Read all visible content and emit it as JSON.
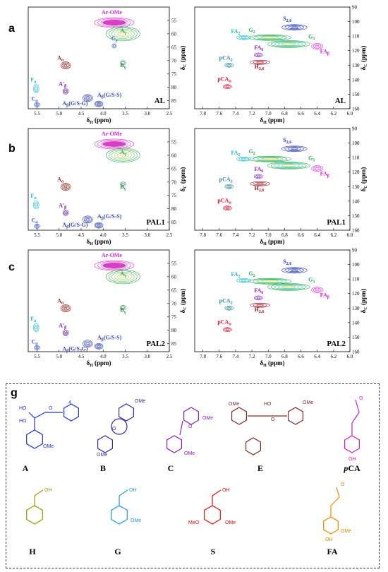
{
  "panels": [
    {
      "id": "a",
      "sample": "AL",
      "region": "side"
    },
    {
      "id": "b",
      "sample": "PAL1",
      "region": "side"
    },
    {
      "id": "c",
      "sample": "PAL2",
      "region": "side"
    },
    {
      "id": "d",
      "sample": "AL",
      "region": "aromatic"
    },
    {
      "id": "e",
      "sample": "PAL1",
      "region": "aromatic"
    },
    {
      "id": "f",
      "sample": "PAL2",
      "region": "aromatic"
    }
  ],
  "axes": {
    "side": {
      "x_label": "δH (ppm)",
      "y_label": "δC (ppm)",
      "x_ticks": [
        "5.5",
        "5.0",
        "4.5",
        "4.0",
        "3.5",
        "3.0",
        "2.5"
      ],
      "y_ticks": [
        "55",
        "60",
        "65",
        "70",
        "75",
        "80",
        "85"
      ]
    },
    "aromatic": {
      "x_label": "δH (ppm)",
      "y_label": "δC (ppm)",
      "x_ticks": [
        "7.8",
        "7.6",
        "7.4",
        "7.2",
        "7.0",
        "6.8",
        "6.6",
        "6.4",
        "6.2",
        "6.0"
      ],
      "y_ticks": [
        "90",
        "100",
        "110",
        "120",
        "130",
        "140",
        "150",
        "160"
      ]
    }
  },
  "cross_peak_labels": {
    "side": [
      "Ar-OMe",
      "Aγ",
      "Cγ",
      "Bγ",
      "Aα",
      "A'β",
      "Fα",
      "Cα",
      "Aβ(G/S-G)",
      "Aβ(G/S-S)"
    ],
    "aromatic": [
      "S2,6",
      "FA2",
      "G2",
      "G5",
      "FA6",
      "pCA2",
      "H2,6",
      "FAβ",
      "pCAα"
    ]
  },
  "colors": {
    "Ar-OMe": "#cc22cc",
    "A": "#22aa44",
    "B": "#228844",
    "C": "#3355cc",
    "A_alpha": "#8b1a1a",
    "A_beta_prime": "#6a1a9a",
    "A_beta": "#3344aa",
    "F": "#22bbcc",
    "S": "#2233aa",
    "G": "#22aa55",
    "FA": "#22bbcc",
    "FA6": "#8822bb",
    "FA_beta": "#dd22dd",
    "pCA2": "#3388aa",
    "H": "#991122",
    "pCA_alpha": "#dd1133"
  },
  "chart_data": [
    {
      "panel": "a",
      "type": "scatter",
      "xlabel": "δH (ppm)",
      "ylabel": "δC (ppm)",
      "xlim": [
        5.7,
        2.5
      ],
      "ylim": [
        88,
        50
      ],
      "series": [
        {
          "name": "Ar-OMe",
          "x": [
            3.75
          ],
          "y": [
            55.8
          ]
        },
        {
          "name": "Aγ",
          "x": [
            3.55
          ],
          "y": [
            60.0
          ]
        },
        {
          "name": "Cγ",
          "x": [
            3.75
          ],
          "y": [
            64.5
          ]
        },
        {
          "name": "Bγ",
          "x": [
            3.55
          ],
          "y": [
            70.8
          ]
        },
        {
          "name": "Aα",
          "x": [
            4.85
          ],
          "y": [
            71.8
          ]
        },
        {
          "name": "A'β",
          "x": [
            4.85
          ],
          "y": [
            81.5
          ]
        },
        {
          "name": "Fα",
          "x": [
            5.52
          ],
          "y": [
            80.5
          ]
        },
        {
          "name": "Cα",
          "x": [
            5.5
          ],
          "y": [
            86.5
          ]
        },
        {
          "name": "Aβ(G/S-G)",
          "x": [
            4.35
          ],
          "y": [
            84.0
          ]
        },
        {
          "name": "Aβ(G/S-S)",
          "x": [
            4.1
          ],
          "y": [
            86.2
          ]
        }
      ]
    },
    {
      "panel": "b",
      "type": "scatter",
      "xlabel": "δH (ppm)",
      "ylabel": "δC (ppm)",
      "xlim": [
        5.7,
        2.5
      ],
      "ylim": [
        88,
        50
      ],
      "series": [
        {
          "name": "Ar-OMe",
          "x": [
            3.75
          ],
          "y": [
            55.8
          ]
        },
        {
          "name": "Aγ",
          "x": [
            3.55
          ],
          "y": [
            60.0
          ]
        },
        {
          "name": "Bγ",
          "x": [
            3.55
          ],
          "y": [
            70.8
          ]
        },
        {
          "name": "Aα",
          "x": [
            4.85
          ],
          "y": [
            71.8
          ]
        },
        {
          "name": "A'β",
          "x": [
            4.85
          ],
          "y": [
            81.5
          ]
        },
        {
          "name": "Fα",
          "x": [
            5.52
          ],
          "y": [
            78.5
          ]
        },
        {
          "name": "Cα",
          "x": [
            5.5
          ],
          "y": [
            86.5
          ]
        },
        {
          "name": "Aβ(G/S-G)",
          "x": [
            4.35
          ],
          "y": [
            84.0
          ]
        },
        {
          "name": "Aβ(G/S-S)",
          "x": [
            4.1
          ],
          "y": [
            86.2
          ]
        }
      ]
    },
    {
      "panel": "c",
      "type": "scatter",
      "xlabel": "δH (ppm)",
      "ylabel": "δC (ppm)",
      "xlim": [
        5.7,
        2.5
      ],
      "ylim": [
        88,
        50
      ],
      "series": [
        {
          "name": "Ar-OMe",
          "x": [
            3.75
          ],
          "y": [
            55.8
          ]
        },
        {
          "name": "Aγ",
          "x": [
            3.55
          ],
          "y": [
            60.0
          ]
        },
        {
          "name": "Bγ",
          "x": [
            3.55
          ],
          "y": [
            71.5
          ]
        },
        {
          "name": "Aα",
          "x": [
            4.85
          ],
          "y": [
            71.8
          ]
        },
        {
          "name": "A'β",
          "x": [
            4.85
          ],
          "y": [
            81.0
          ]
        },
        {
          "name": "Fα",
          "x": [
            5.52
          ],
          "y": [
            79.0
          ]
        },
        {
          "name": "Cα",
          "x": [
            5.5
          ],
          "y": [
            86.5
          ]
        },
        {
          "name": "Aβ(G/S-G)",
          "x": [
            4.35
          ],
          "y": [
            85.0
          ]
        },
        {
          "name": "Aβ(G/S-S)",
          "x": [
            4.1
          ],
          "y": [
            86.0
          ]
        }
      ]
    },
    {
      "panel": "d",
      "type": "scatter",
      "xlabel": "δH (ppm)",
      "ylabel": "δC (ppm)",
      "xlim": [
        7.9,
        6.0
      ],
      "ylim": [
        90,
        160
      ],
      "series": [
        {
          "name": "S2,6",
          "x": [
            6.68
          ],
          "y": [
            104.0
          ]
        },
        {
          "name": "FA2",
          "x": [
            7.3
          ],
          "y": [
            111.0
          ]
        },
        {
          "name": "G2",
          "x": [
            6.98
          ],
          "y": [
            111.0
          ]
        },
        {
          "name": "G5",
          "x": [
            6.75
          ],
          "y": [
            115.5
          ]
        },
        {
          "name": "FA6",
          "x": [
            7.12
          ],
          "y": [
            123.0
          ]
        },
        {
          "name": "pCA2",
          "x": [
            7.48
          ],
          "y": [
            130.0
          ]
        },
        {
          "name": "H2,6",
          "x": [
            7.1
          ],
          "y": [
            128.0
          ]
        },
        {
          "name": "FAβ",
          "x": [
            6.4
          ],
          "y": [
            117.0
          ]
        },
        {
          "name": "pCAα",
          "x": [
            7.5
          ],
          "y": [
            144.8
          ]
        }
      ]
    },
    {
      "panel": "e",
      "type": "scatter",
      "xlabel": "δH (ppm)",
      "ylabel": "δC (ppm)",
      "xlim": [
        7.9,
        6.0
      ],
      "ylim": [
        90,
        160
      ],
      "series": [
        {
          "name": "S2,6",
          "x": [
            6.68
          ],
          "y": [
            104.0
          ]
        },
        {
          "name": "FA2",
          "x": [
            7.3
          ],
          "y": [
            111.0
          ]
        },
        {
          "name": "G2",
          "x": [
            6.98
          ],
          "y": [
            111.0
          ]
        },
        {
          "name": "G5",
          "x": [
            6.75
          ],
          "y": [
            115.5
          ]
        },
        {
          "name": "FA6",
          "x": [
            7.12
          ],
          "y": [
            123.0
          ]
        },
        {
          "name": "pCA2",
          "x": [
            7.48
          ],
          "y": [
            130.0
          ]
        },
        {
          "name": "H2,6",
          "x": [
            7.1
          ],
          "y": [
            128.0
          ]
        },
        {
          "name": "FAβ",
          "x": [
            6.4
          ],
          "y": [
            117.5
          ]
        },
        {
          "name": "pCAα",
          "x": [
            7.5
          ],
          "y": [
            144.8
          ]
        }
      ]
    },
    {
      "panel": "f",
      "type": "scatter",
      "xlabel": "δH (ppm)",
      "ylabel": "δC (ppm)",
      "xlim": [
        7.9,
        6.0
      ],
      "ylim": [
        90,
        160
      ],
      "series": [
        {
          "name": "S2,6",
          "x": [
            6.68
          ],
          "y": [
            104.0
          ]
        },
        {
          "name": "FA2",
          "x": [
            7.3
          ],
          "y": [
            111.0
          ]
        },
        {
          "name": "G2",
          "x": [
            6.98
          ],
          "y": [
            111.5
          ]
        },
        {
          "name": "G5",
          "x": [
            6.75
          ],
          "y": [
            115.5
          ]
        },
        {
          "name": "FA6",
          "x": [
            7.12
          ],
          "y": [
            123.0
          ]
        },
        {
          "name": "pCA2",
          "x": [
            7.48
          ],
          "y": [
            130.0
          ]
        },
        {
          "name": "H2,6",
          "x": [
            7.1
          ],
          "y": [
            128.0
          ]
        },
        {
          "name": "FAβ",
          "x": [
            6.4
          ],
          "y": [
            117.5
          ]
        },
        {
          "name": "pCAα",
          "x": [
            7.5
          ],
          "y": [
            144.8
          ]
        }
      ]
    }
  ],
  "structures": {
    "panel_label": "g",
    "names": [
      "A",
      "B",
      "C",
      "E",
      "pCA",
      "H",
      "G",
      "S",
      "FA"
    ]
  }
}
